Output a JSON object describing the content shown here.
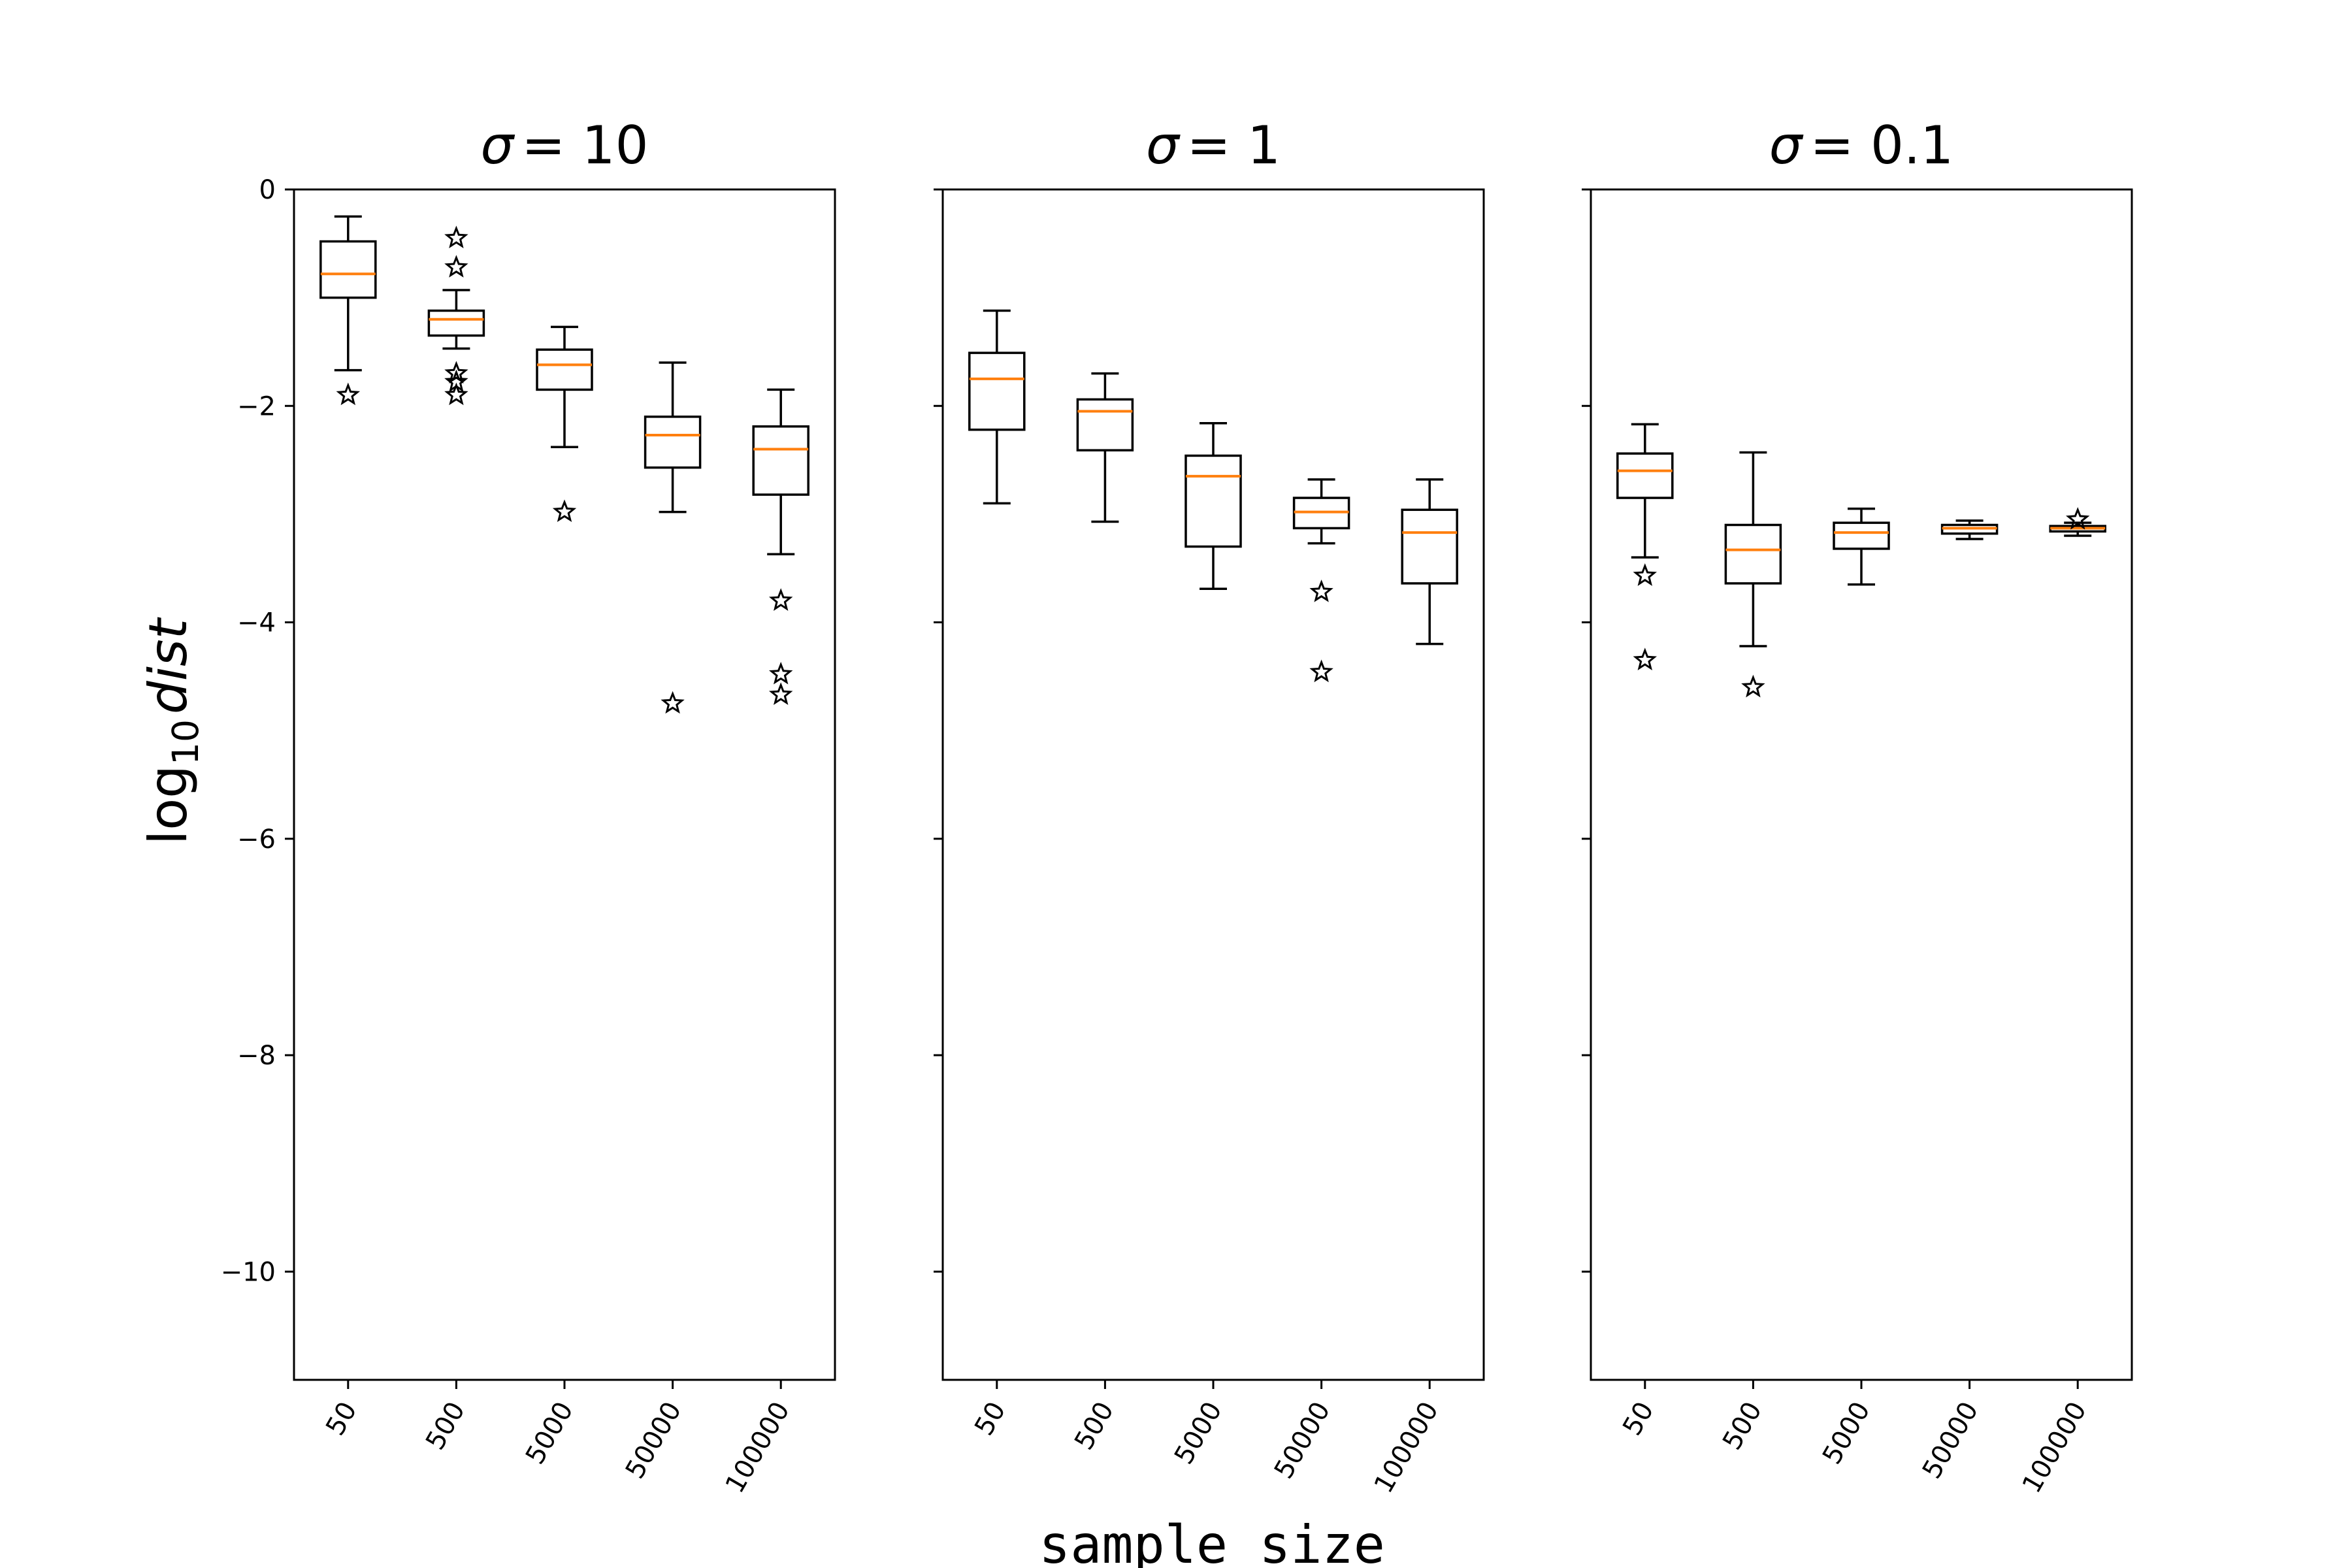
{
  "chart_data": {
    "type": "box",
    "ylabel_parts": {
      "base": "log",
      "sub": "10",
      "var": "dist"
    },
    "xlabel": "sample size",
    "yticks": [
      0,
      -2,
      -4,
      -6,
      -8,
      -10
    ],
    "ytick_labels": [
      "0",
      "−2",
      "−4",
      "−6",
      "−8",
      "−10"
    ],
    "ylim": [
      -11,
      0
    ],
    "categories": [
      "50",
      "500",
      "5000",
      "50000",
      "100000"
    ],
    "colors": {
      "median": "#ff7f0e",
      "box": "#000000"
    },
    "outlier_marker": "star",
    "panels": [
      {
        "title_symbol": "σ",
        "title_value": "= 10",
        "boxes": [
          {
            "whislo": -1.67,
            "q1": -1.0,
            "med": -0.78,
            "q3": -0.48,
            "whishi": -0.25,
            "fliers": [
              -1.9
            ]
          },
          {
            "whislo": -1.47,
            "q1": -1.35,
            "med": -1.2,
            "q3": -1.12,
            "whishi": -0.93,
            "fliers": [
              -0.45,
              -0.72,
              -1.7,
              -1.78,
              -1.9
            ]
          },
          {
            "whislo": -2.38,
            "q1": -1.85,
            "med": -1.62,
            "q3": -1.48,
            "whishi": -1.27,
            "fliers": [
              -2.98
            ]
          },
          {
            "whislo": -2.98,
            "q1": -2.57,
            "med": -2.27,
            "q3": -2.1,
            "whishi": -1.6,
            "fliers": [
              -4.75
            ]
          },
          {
            "whislo": -3.37,
            "q1": -2.82,
            "med": -2.4,
            "q3": -2.19,
            "whishi": -1.85,
            "fliers": [
              -3.8,
              -4.48,
              -4.67
            ]
          }
        ]
      },
      {
        "title_symbol": "σ",
        "title_value": "= 1",
        "boxes": [
          {
            "whislo": -2.9,
            "q1": -2.22,
            "med": -1.75,
            "q3": -1.51,
            "whishi": -1.12,
            "fliers": []
          },
          {
            "whislo": -3.07,
            "q1": -2.41,
            "med": -2.05,
            "q3": -1.94,
            "whishi": -1.7,
            "fliers": []
          },
          {
            "whislo": -3.69,
            "q1": -3.3,
            "med": -2.65,
            "q3": -2.46,
            "whishi": -2.16,
            "fliers": []
          },
          {
            "whislo": -3.27,
            "q1": -3.13,
            "med": -2.98,
            "q3": -2.85,
            "whishi": -2.68,
            "fliers": [
              -3.72,
              -4.46
            ]
          },
          {
            "whislo": -4.2,
            "q1": -3.64,
            "med": -3.17,
            "q3": -2.96,
            "whishi": -2.68,
            "fliers": []
          }
        ]
      },
      {
        "title_symbol": "σ",
        "title_value": "= 0.1",
        "boxes": [
          {
            "whislo": -3.4,
            "q1": -2.85,
            "med": -2.6,
            "q3": -2.44,
            "whishi": -2.17,
            "fliers": [
              -3.57,
              -4.35
            ]
          },
          {
            "whislo": -4.22,
            "q1": -3.64,
            "med": -3.33,
            "q3": -3.1,
            "whishi": -2.43,
            "fliers": [
              -4.6
            ]
          },
          {
            "whislo": -3.65,
            "q1": -3.32,
            "med": -3.17,
            "q3": -3.08,
            "whishi": -2.95,
            "fliers": []
          },
          {
            "whislo": -3.23,
            "q1": -3.18,
            "med": -3.13,
            "q3": -3.1,
            "whishi": -3.06,
            "fliers": []
          },
          {
            "whislo": -3.2,
            "q1": -3.16,
            "med": -3.13,
            "q3": -3.11,
            "whishi": -3.08,
            "fliers": [
              -3.05
            ]
          }
        ]
      }
    ]
  }
}
